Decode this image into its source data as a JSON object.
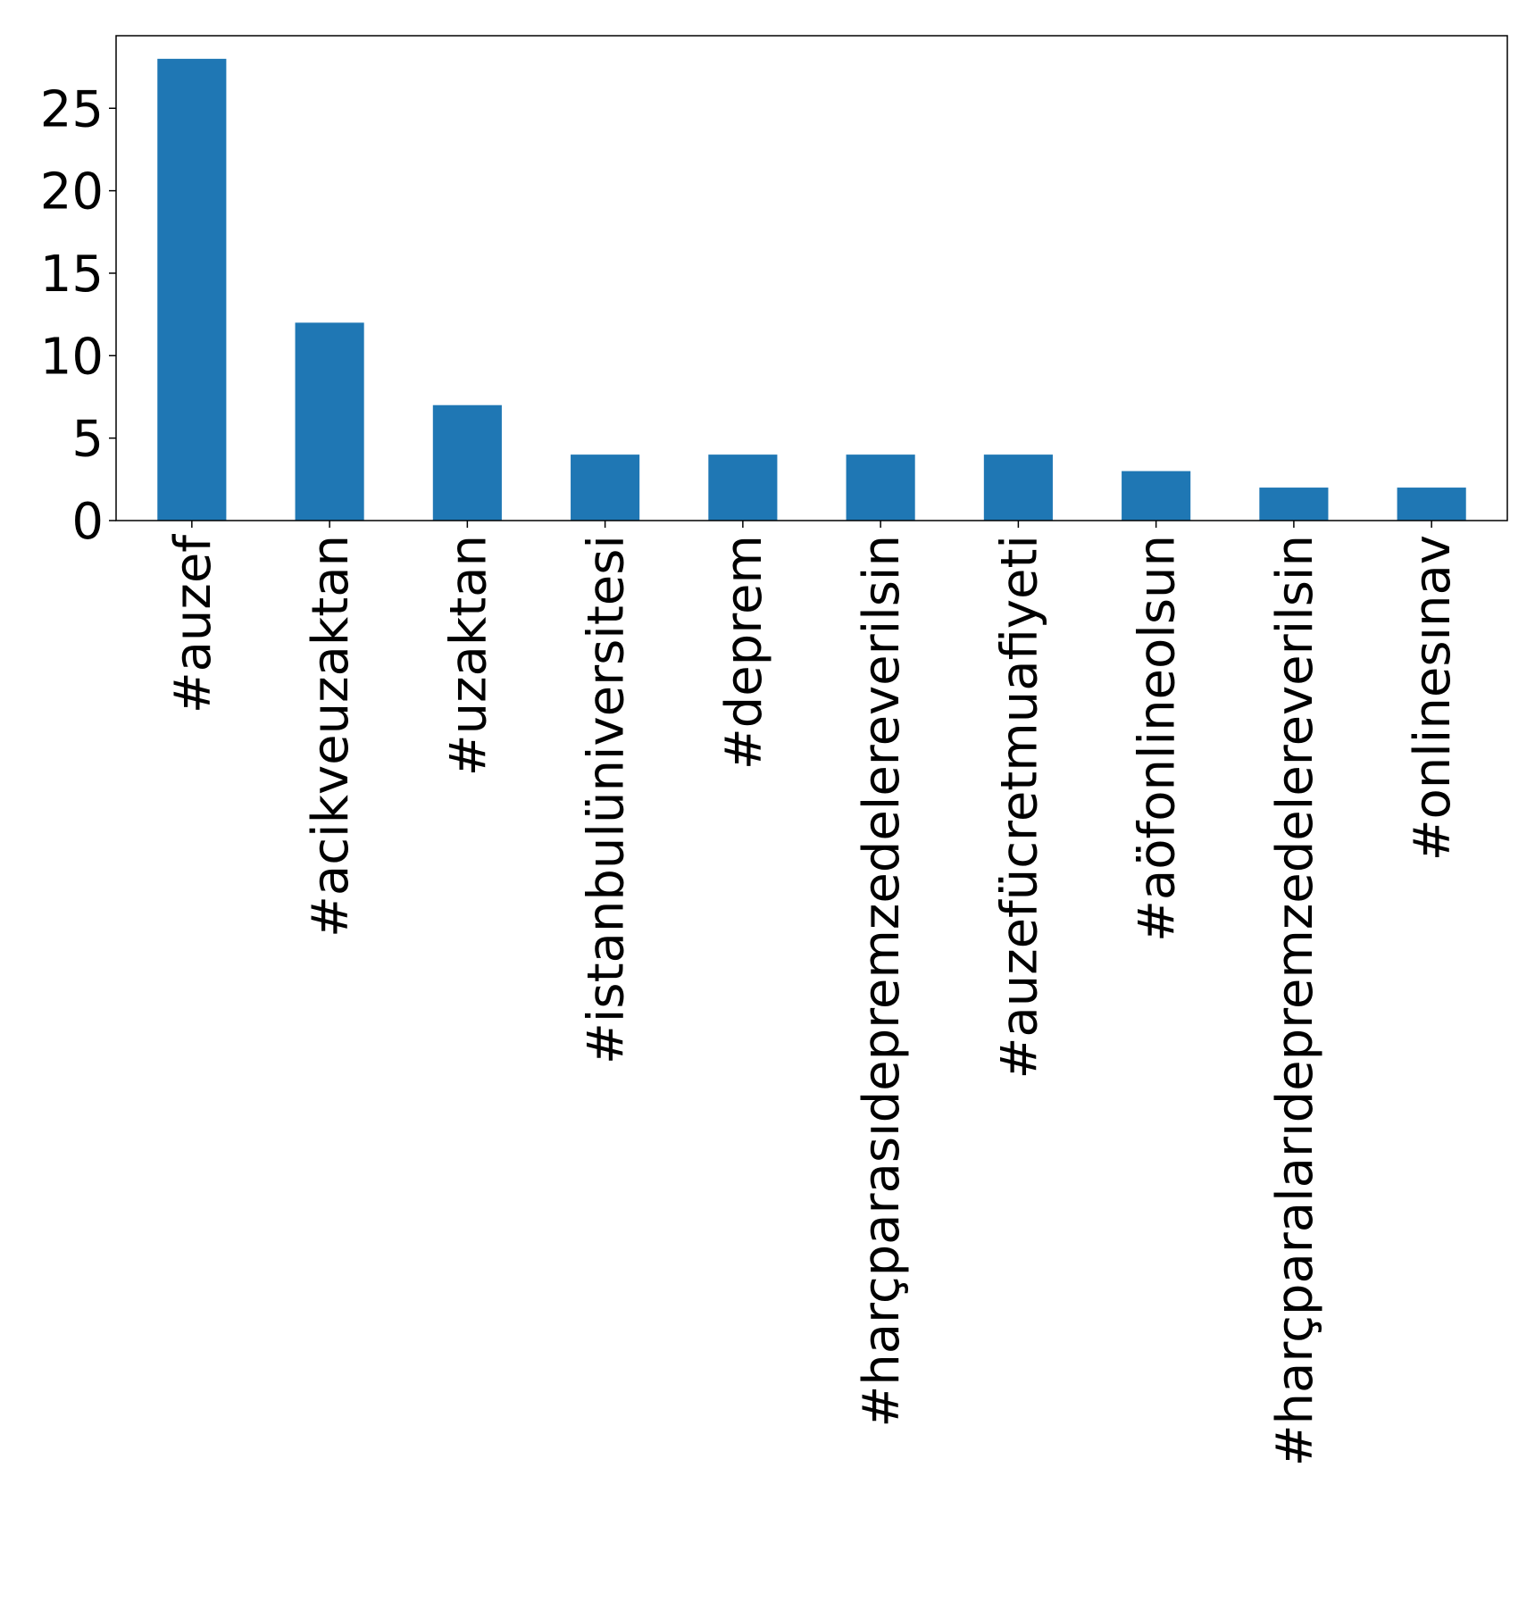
{
  "chart_data": {
    "type": "bar",
    "title": "",
    "xlabel": "",
    "ylabel": "",
    "categories": [
      "#auzef",
      "#acikveuzaktan",
      "#uzaktan",
      "#istanbulüniversitesi",
      "#deprem",
      "#harçparasıdepremzedelereverilsin",
      "#auzefücretmuafiyeti",
      "#aöfonlineolsun",
      "#harçparalarıdepremzedelereverilsin",
      "#onlinesınav"
    ],
    "values": [
      28,
      12,
      7,
      4,
      4,
      4,
      4,
      3,
      2,
      2
    ],
    "ylim": [
      0,
      29.4
    ],
    "yticks": [
      0,
      5,
      10,
      15,
      20,
      25
    ],
    "grid": false,
    "legend": "none",
    "bar_color": "#1f77b4"
  }
}
